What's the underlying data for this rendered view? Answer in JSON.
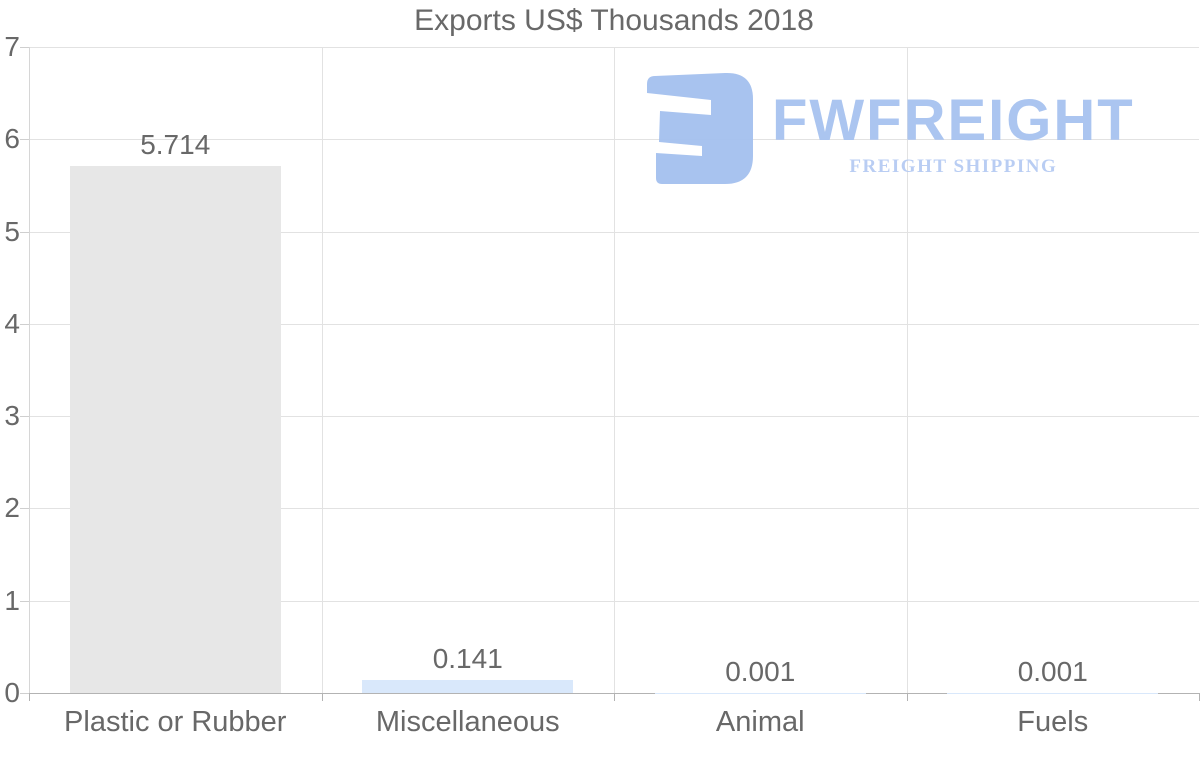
{
  "chart_data": {
    "type": "bar",
    "title": "Exports US$ Thousands 2018",
    "categories": [
      "Plastic or Rubber",
      "Miscellaneous",
      "Animal",
      "Fuels"
    ],
    "values": [
      5.714,
      0.141,
      0.001,
      0.001
    ],
    "value_labels": [
      "5.714",
      "0.141",
      "0.001",
      "0.001"
    ],
    "bar_colors": [
      "#e7e7e7",
      "#d9e8fb",
      "#d9e8fb",
      "#d9e8fb"
    ],
    "xlabel": "",
    "ylabel": "",
    "ylim": [
      0,
      7
    ],
    "yticks": [
      0,
      1,
      2,
      3,
      4,
      5,
      6,
      7
    ],
    "grid": true,
    "legend": false
  },
  "logo": {
    "brand": "FWFREIGHT",
    "tagline": "FREIGHT SHIPPING",
    "icon_color": "#a5c1ef",
    "brand_color": "#a8c3f0",
    "tagline_color": "#b7ccf3"
  },
  "colors": {
    "text": "#686868",
    "gridline": "#e2e2e2",
    "axis_baseline": "#b3b3b3",
    "y_axis_line": "#d6d6d6"
  }
}
